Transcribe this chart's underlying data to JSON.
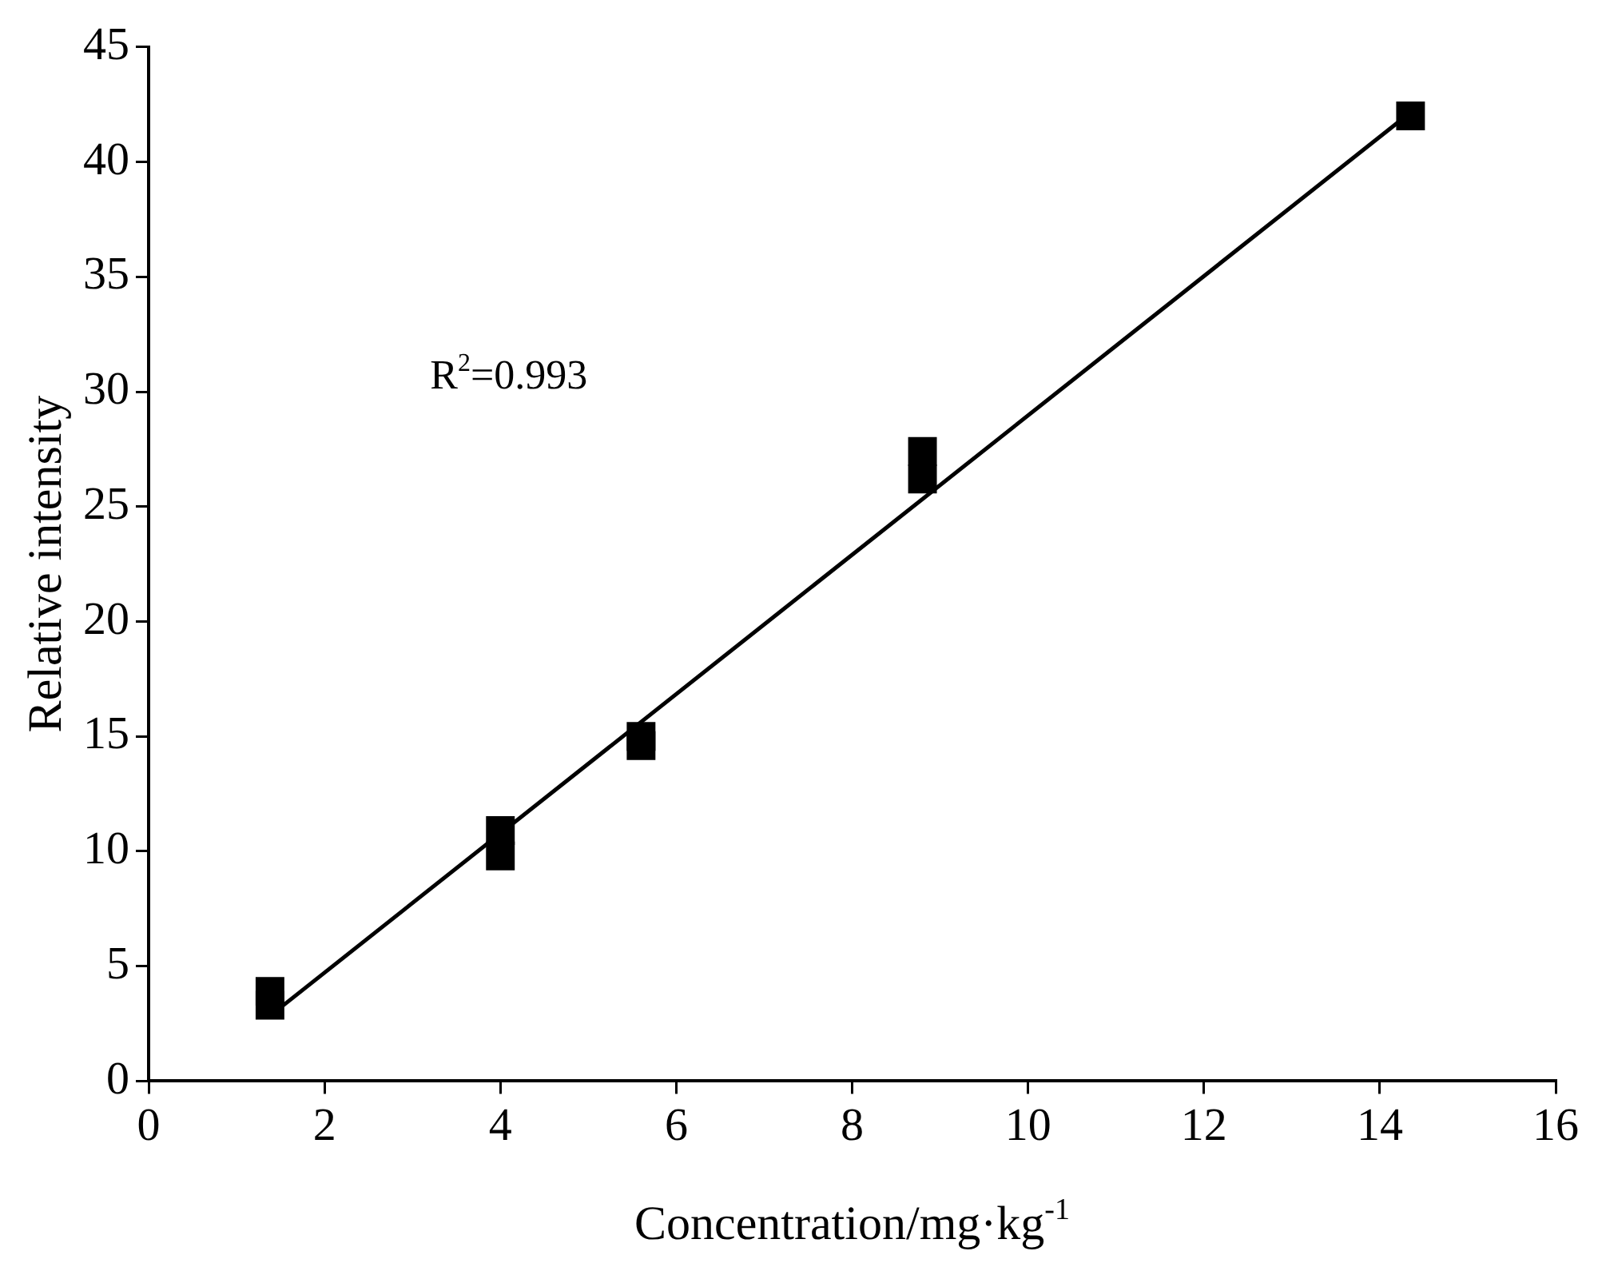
{
  "chart_data": {
    "type": "scatter",
    "xlabel": "Concentration/mg·kg$^{-1}$",
    "ylabel": "Relative intensity",
    "annotations": [
      "R$^{2}$=0.993"
    ],
    "xlim": [
      0,
      16
    ],
    "xticks": [
      0,
      2,
      4,
      6,
      8,
      10,
      12,
      14,
      16
    ],
    "ylim": [
      0,
      45
    ],
    "yticks": [
      0,
      5,
      10,
      15,
      20,
      25,
      30,
      35,
      40,
      45
    ],
    "grid": false,
    "legend": false,
    "series": [
      {
        "marker": "square",
        "color": "#000000",
        "x": [
          1.38,
          1.38,
          4,
          4,
          5.6,
          5.6,
          8.8,
          8.8,
          14.35
        ],
        "values": [
          3.9,
          3.3,
          10.9,
          9.8,
          15.0,
          14.6,
          27.4,
          26.2,
          42.0
        ]
      },
      {
        "type": "line",
        "marker": "none",
        "color": "#000000",
        "x": [
          1.5,
          14.3
        ],
        "values": [
          3.2,
          42.0
        ]
      }
    ]
  }
}
